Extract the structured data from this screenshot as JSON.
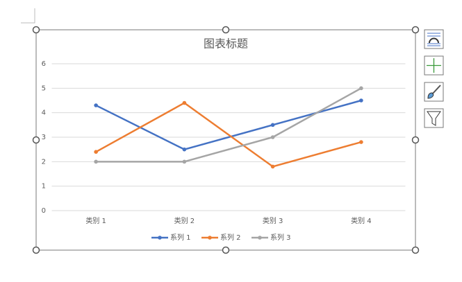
{
  "chart_data": {
    "type": "line",
    "title": "图表标题",
    "categories": [
      "类别 1",
      "类别 2",
      "类别 3",
      "类别 4"
    ],
    "series": [
      {
        "name": "系列 1",
        "color": "#4472c4",
        "values": [
          4.3,
          2.5,
          3.5,
          4.5
        ]
      },
      {
        "name": "系列 2",
        "color": "#ed7d31",
        "values": [
          2.4,
          4.4,
          1.8,
          2.8
        ]
      },
      {
        "name": "系列 3",
        "color": "#a5a5a5",
        "values": [
          2,
          2,
          3,
          5
        ]
      }
    ],
    "ylim": [
      0,
      6
    ],
    "yticks": [
      0,
      1,
      2,
      3,
      4,
      5,
      6
    ],
    "grid": true,
    "legend": "bottom"
  }
}
